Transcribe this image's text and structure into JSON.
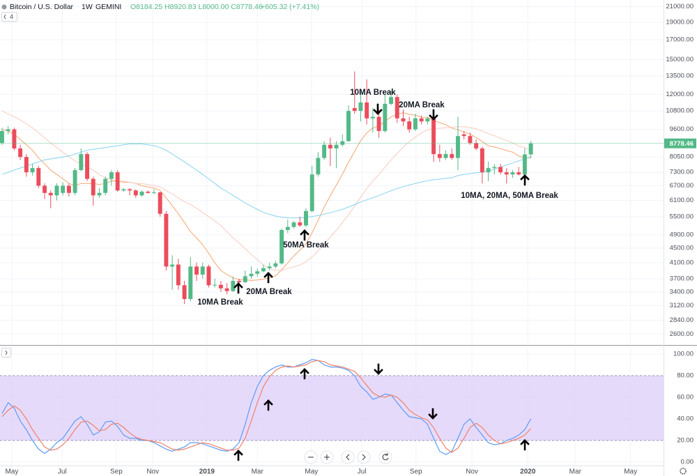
{
  "header": {
    "symbol": "Bitcoin / U.S. Dollar",
    "interval": "1W",
    "exchange": "GEMINI",
    "ohlc": "O8184.25 H8920.83 L8000.00 C8778.46",
    "change": "+605.32 (+7.41%)",
    "indicators": "4"
  },
  "chart_data": [
    {
      "type": "candlestick",
      "up_color": "#53b987",
      "down_color": "#eb4d5c",
      "log_scale": true,
      "grid": true,
      "open": [
        8800,
        9500,
        9600,
        8500,
        8050,
        7300,
        7500,
        6700,
        6400,
        6300,
        6400,
        6700,
        6400,
        7400,
        8200,
        7000,
        6300,
        6400,
        7000,
        7300,
        6500,
        6550,
        6500,
        6300,
        6450,
        6400,
        6420,
        5600,
        4000,
        4050,
        3550,
        3250,
        4000,
        3800,
        4000,
        3550,
        3560,
        3480,
        3420,
        3650,
        3620,
        3760,
        3820,
        3880,
        3960,
        4000,
        4080,
        5050,
        5150,
        5300,
        5200,
        5700,
        7200,
        8000,
        8700,
        8500,
        8700,
        8900,
        11000,
        10800,
        11400,
        10300,
        10400,
        9500,
        11300,
        11800,
        10300,
        10100,
        9600,
        10300,
        10100,
        10300,
        8200,
        8000,
        8200,
        8000,
        9300,
        9200,
        8800,
        8500,
        7300,
        7500,
        7550,
        7300,
        7200,
        7300,
        7200,
        8184.25
      ],
      "high": [
        9700,
        9800,
        9700,
        8700,
        8200,
        7700,
        7600,
        6800,
        6500,
        6800,
        6850,
        6800,
        7500,
        8500,
        8300,
        7100,
        6600,
        7100,
        7400,
        7400,
        6600,
        6600,
        6550,
        6500,
        6500,
        6550,
        6450,
        5700,
        4300,
        4200,
        3650,
        4250,
        4100,
        4100,
        4050,
        3700,
        3650,
        3600,
        3750,
        3700,
        3900,
        4000,
        3950,
        4050,
        4100,
        4150,
        5100,
        5400,
        5350,
        5500,
        5800,
        7600,
        8300,
        8900,
        9100,
        8900,
        9300,
        11200,
        13900,
        12200,
        13200,
        11000,
        10900,
        12000,
        12300,
        12000,
        10900,
        10400,
        10600,
        10500,
        10400,
        10400,
        8700,
        8400,
        8500,
        10400,
        9500,
        9400,
        9000,
        8600,
        7800,
        7700,
        7700,
        7500,
        7400,
        7550,
        8500,
        8920.83
      ],
      "low": [
        8700,
        9300,
        8400,
        7900,
        7100,
        7150,
        6600,
        6150,
        5800,
        6100,
        6300,
        6250,
        6300,
        7350,
        6900,
        5900,
        6200,
        6300,
        6700,
        6450,
        6450,
        6300,
        6200,
        6250,
        6380,
        6350,
        5500,
        3900,
        3450,
        3450,
        3150,
        3200,
        3650,
        3700,
        3500,
        3500,
        3400,
        3350,
        3400,
        3550,
        3600,
        3700,
        3750,
        3850,
        3900,
        3950,
        4050,
        4950,
        5100,
        5150,
        5150,
        5650,
        7100,
        7900,
        7600,
        7500,
        8600,
        8900,
        10600,
        10100,
        9900,
        9400,
        9100,
        9400,
        11200,
        10000,
        9800,
        9400,
        9500,
        9900,
        9900,
        7800,
        7800,
        7900,
        7900,
        7400,
        9000,
        8700,
        8400,
        6800,
        6900,
        7200,
        7200,
        6800,
        7050,
        7150,
        7200,
        8000
      ],
      "close": [
        9500,
        9600,
        8500,
        8050,
        7300,
        7500,
        6700,
        6400,
        6300,
        6700,
        6700,
        6400,
        7400,
        8200,
        7000,
        6300,
        6400,
        7000,
        7300,
        6500,
        6550,
        6500,
        6300,
        6450,
        6400,
        6420,
        5600,
        4000,
        4050,
        3550,
        3250,
        4000,
        3800,
        4000,
        3550,
        3560,
        3480,
        3420,
        3650,
        3620,
        3760,
        3820,
        3880,
        3960,
        4000,
        4080,
        5050,
        5150,
        5300,
        5200,
        5700,
        7200,
        8000,
        8700,
        8500,
        8700,
        8900,
        10800,
        10800,
        11400,
        10300,
        10400,
        9500,
        11300,
        11800,
        10300,
        10100,
        9600,
        10300,
        10100,
        10300,
        8200,
        8000,
        8200,
        8000,
        9200,
        9200,
        8800,
        8500,
        7300,
        7500,
        7550,
        7300,
        7200,
        7300,
        7200,
        8180,
        8778.46
      ],
      "series": [
        {
          "color": "#f5a46c",
          "values": [
            9600,
            9500,
            9300,
            9000,
            8700,
            8400,
            8000,
            7700,
            7400,
            7200,
            7000,
            6800,
            6700,
            6800,
            6800,
            6800,
            6750,
            6800,
            6900,
            6900,
            6850,
            6850,
            6800,
            6700,
            6650,
            6600,
            6500,
            6200,
            5900,
            5600,
            5300,
            5000,
            4800,
            4600,
            4350,
            4100,
            3900,
            3800,
            3720,
            3680,
            3680,
            3660,
            3670,
            3690,
            3720,
            3770,
            3920,
            4090,
            4280,
            4440,
            4620,
            4960,
            5370,
            5840,
            6290,
            6730,
            7210,
            7780,
            8330,
            8930,
            9390,
            9680,
            9830,
            10090,
            10400,
            10560,
            10680,
            10560,
            10510,
            10380,
            10370,
            10160,
            10010,
            9890,
            9680,
            9570,
            9450,
            9320,
            9110,
            8880,
            8640,
            8580,
            8490,
            8390,
            8300,
            8100,
            8000,
            8000
          ]
        },
        {
          "color": "#f9cbbd",
          "values": [
            10800,
            10600,
            10400,
            10200,
            9950,
            9700,
            9400,
            9100,
            8800,
            8550,
            8300,
            8050,
            7850,
            7700,
            7550,
            7400,
            7200,
            7050,
            6950,
            6900,
            6900,
            6850,
            6800,
            6800,
            6750,
            6700,
            6650,
            6500,
            6350,
            6200,
            6050,
            5950,
            5800,
            5650,
            5500,
            5350,
            5200,
            5000,
            4800,
            4650,
            4480,
            4320,
            4180,
            4040,
            3950,
            3900,
            3910,
            3950,
            3990,
            4040,
            4120,
            4250,
            4420,
            4620,
            4830,
            5040,
            5300,
            5560,
            5880,
            6230,
            6580,
            6900,
            7190,
            7540,
            7900,
            8240,
            8570,
            8880,
            9140,
            9380,
            9570,
            9660,
            9670,
            9700,
            9730,
            9760,
            9770,
            9710,
            9640,
            9500,
            9340,
            9220,
            9080,
            8940,
            8800,
            8630,
            8540,
            8420
          ]
        },
        {
          "color": "#86d3f0",
          "values": [
            7200,
            7300,
            7400,
            7500,
            7600,
            7700,
            7800,
            7900,
            7950,
            8000,
            8050,
            8100,
            8200,
            8300,
            8400,
            8450,
            8500,
            8550,
            8600,
            8650,
            8700,
            8750,
            8750,
            8750,
            8700,
            8650,
            8550,
            8400,
            8200,
            8000,
            7800,
            7600,
            7400,
            7200,
            7000,
            6800,
            6600,
            6450,
            6300,
            6150,
            6000,
            5880,
            5760,
            5650,
            5580,
            5520,
            5480,
            5460,
            5450,
            5460,
            5470,
            5500,
            5540,
            5590,
            5640,
            5700,
            5760,
            5850,
            5940,
            6040,
            6120,
            6210,
            6290,
            6390,
            6490,
            6580,
            6660,
            6730,
            6800,
            6860,
            6920,
            6960,
            6990,
            7020,
            7050,
            7150,
            7200,
            7240,
            7280,
            7300,
            7350,
            7450,
            7550,
            7650,
            7750,
            7850,
            7950,
            8050
          ]
        }
      ],
      "ylim": [
        2446,
        21923
      ],
      "yticks": [
        {
          "value": 2600,
          "label": "2600.00"
        },
        {
          "value": 2840,
          "label": "2840.00"
        },
        {
          "value": 3120,
          "label": "3120.00"
        },
        {
          "value": 3400,
          "label": "3400.00"
        },
        {
          "value": 3700,
          "label": "3700.00"
        },
        {
          "value": 4100,
          "label": "4100.00"
        },
        {
          "value": 4500,
          "label": "4500.00"
        },
        {
          "value": 4900,
          "label": "4900.00"
        },
        {
          "value": 5500,
          "label": "5500.00"
        },
        {
          "value": 6100,
          "label": "6100.00"
        },
        {
          "value": 6700,
          "label": "6700.00"
        },
        {
          "value": 7300,
          "label": "7300.00"
        },
        {
          "value": 8050,
          "label": "8050.00"
        },
        {
          "value": 9600,
          "label": "9600.00"
        },
        {
          "value": 10800,
          "label": "10800.00"
        },
        {
          "value": 12000,
          "label": "12000.00"
        },
        {
          "value": 13500,
          "label": "13500.00"
        },
        {
          "value": 15000,
          "label": "15000.00"
        },
        {
          "value": 17000,
          "label": "17000.00"
        },
        {
          "value": 19000,
          "label": "19000.00"
        },
        {
          "value": 21000,
          "label": "21000.00"
        }
      ],
      "xlim": [
        -0.34,
        108.83
      ],
      "annotations": [
        "10MA Break",
        "20MA Break",
        "50MA Break",
        "10MA Break",
        "20MA Break",
        "10MA, 20MA, 50MA Break"
      ]
    },
    {
      "type": "line",
      "grid": true,
      "series": [
        {
          "color": "#5b9cf6",
          "values": [
            45,
            55,
            50,
            38,
            30,
            20,
            12,
            8,
            12,
            18,
            22,
            30,
            38,
            42,
            35,
            25,
            28,
            37,
            38,
            33,
            25,
            22,
            22,
            20,
            20,
            18,
            15,
            12,
            10,
            12,
            14,
            18,
            18,
            17,
            15,
            13,
            11,
            10,
            12,
            18,
            35,
            55,
            70,
            80,
            85,
            88,
            90,
            88,
            88,
            90,
            92,
            95,
            94,
            90,
            88,
            88,
            87,
            85,
            80,
            70,
            65,
            58,
            60,
            63,
            62,
            55,
            48,
            42,
            41,
            40,
            35,
            22,
            10,
            7,
            10,
            22,
            35,
            40,
            32,
            25,
            18,
            16,
            17,
            20,
            22,
            25,
            30,
            40
          ]
        },
        {
          "color": "#f0806a",
          "values": [
            42,
            48,
            52,
            48,
            40,
            30,
            22,
            14,
            11,
            12,
            16,
            22,
            30,
            37,
            38,
            34,
            29,
            30,
            35,
            36,
            32,
            27,
            23,
            21,
            20,
            19,
            18,
            15,
            12,
            11,
            12,
            14,
            16,
            18,
            17,
            15,
            13,
            11,
            11,
            13,
            22,
            38,
            55,
            70,
            79,
            85,
            88,
            89,
            88,
            89,
            90,
            93,
            94,
            93,
            90,
            89,
            88,
            86,
            84,
            78,
            71,
            64,
            61,
            60,
            62,
            60,
            55,
            48,
            44,
            41,
            39,
            32,
            22,
            13,
            9,
            13,
            22,
            32,
            36,
            32,
            25,
            20,
            17,
            18,
            20,
            22,
            25,
            31
          ]
        }
      ],
      "band": {
        "range": [
          20,
          80
        ],
        "color": "#ddcdf8"
      },
      "ylim": [
        -3.2,
        107.1
      ],
      "yticks": [
        {
          "value": 0,
          "label": "0.00"
        },
        {
          "value": 20,
          "label": "20.00"
        },
        {
          "value": 40,
          "label": "40.00"
        },
        {
          "value": 60,
          "label": "60.00"
        },
        {
          "value": 80,
          "label": "80.00"
        },
        {
          "value": 100,
          "label": "100.00"
        }
      ],
      "xlim": [
        -0.34,
        108.83
      ],
      "xticks": [
        {
          "value": 1.6,
          "label": "May"
        },
        {
          "value": 9.9,
          "label": "Jul"
        },
        {
          "value": 18.8,
          "label": "Sep"
        },
        {
          "value": 24.8,
          "label": "Nov"
        },
        {
          "value": 33.7,
          "label": "2019"
        },
        {
          "value": 42.0,
          "label": "Mar"
        },
        {
          "value": 50.9,
          "label": "May"
        },
        {
          "value": 59.2,
          "label": "Jul"
        },
        {
          "value": 68.1,
          "label": "Sep"
        },
        {
          "value": 77.3,
          "label": "Nov"
        },
        {
          "value": 86.5,
          "label": "2020"
        },
        {
          "value": 94.3,
          "label": "Mar"
        },
        {
          "value": 103.4,
          "label": "May"
        }
      ]
    }
  ]
}
